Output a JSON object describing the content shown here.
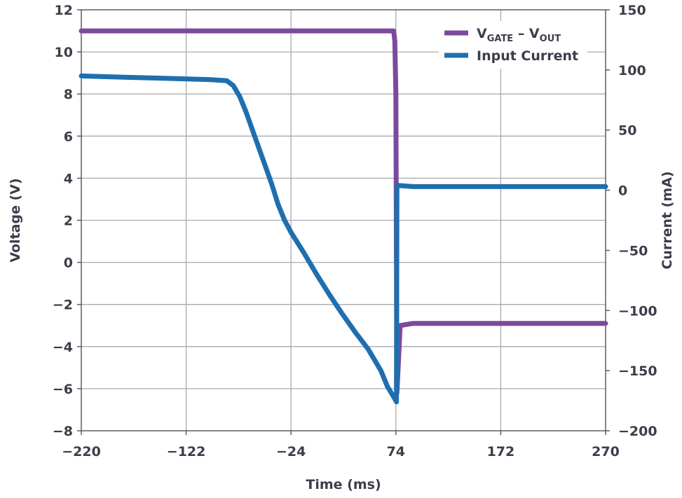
{
  "chart_data": {
    "type": "line",
    "title": "",
    "xlabel": "Time (ms)",
    "ylabel_left": "Voltage (V)",
    "ylabel_right": "Current (mA)",
    "xlim": [
      -220,
      270
    ],
    "ylim_left": [
      -8,
      12
    ],
    "ylim_right": [
      -200,
      150
    ],
    "x_ticks": [
      -220,
      -122,
      -24,
      74,
      172,
      270
    ],
    "y_ticks_left": [
      -8,
      -6,
      -4,
      -2,
      0,
      2,
      4,
      6,
      8,
      10,
      12
    ],
    "y_ticks_right": [
      -200,
      -150,
      -100,
      -50,
      0,
      50,
      100,
      150
    ],
    "grid": true,
    "legend_position": "top-right",
    "series": [
      {
        "name": "V",
        "name_sub1": "GATE",
        "name_mid": " – V",
        "name_sub2": "OUT",
        "axis": "left",
        "color": "#7b4a9c",
        "x": [
          -220,
          -180,
          -140,
          -100,
          -60,
          -20,
          20,
          60,
          72,
          73,
          74,
          74.5,
          75,
          78,
          90,
          120,
          160,
          200,
          240,
          270
        ],
        "y": [
          11,
          11,
          11,
          11,
          11,
          11,
          11,
          11,
          11,
          10.5,
          8,
          0,
          -6.2,
          -3,
          -2.9,
          -2.9,
          -2.9,
          -2.9,
          -2.9,
          -2.9
        ]
      },
      {
        "name": "Input Current",
        "axis": "right",
        "color": "#1f6fae",
        "x": [
          -220,
          -180,
          -140,
          -100,
          -84,
          -78,
          -72,
          -66,
          -60,
          -54,
          -48,
          -42,
          -36,
          -30,
          -24,
          -12,
          0,
          12,
          24,
          36,
          48,
          60,
          66,
          72,
          74,
          74.5,
          75,
          76,
          90,
          120,
          160,
          200,
          240,
          270
        ],
        "y": [
          95,
          94,
          93,
          92,
          91,
          87,
          78,
          65,
          50,
          35,
          20,
          5,
          -12,
          -25,
          -35,
          -52,
          -70,
          -87,
          -103,
          -118,
          -132,
          -150,
          -163,
          -172,
          -175,
          -176,
          4,
          4,
          3,
          3,
          3,
          3,
          3,
          3
        ]
      }
    ]
  }
}
